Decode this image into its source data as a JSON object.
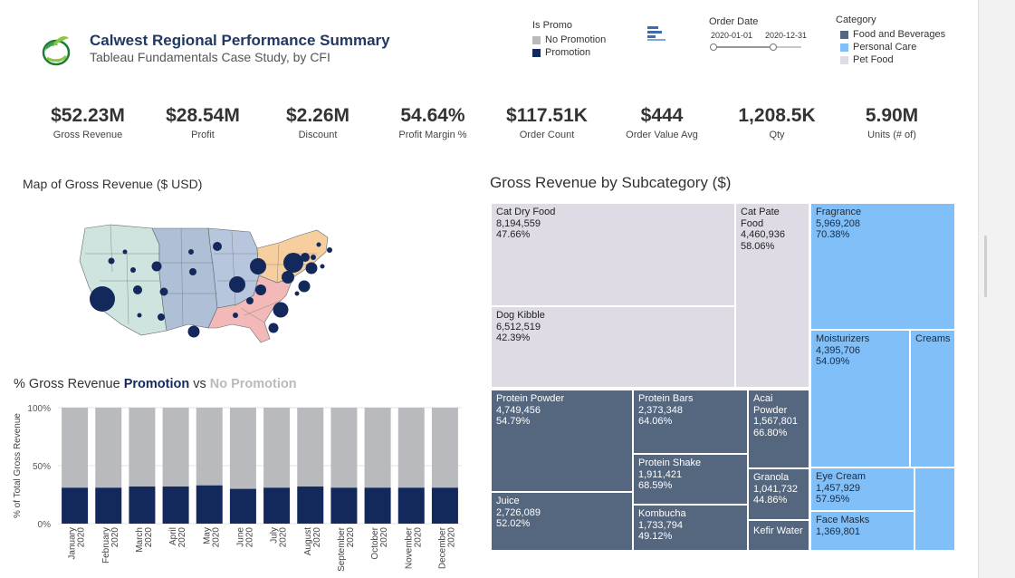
{
  "header": {
    "title": "Calwest Regional Performance Summary",
    "subtitle": "Tableau Fundamentals Case Study, by CFI"
  },
  "promo_legend": {
    "title": "Is Promo",
    "items": [
      {
        "label": "No Promotion",
        "color": "#b9babd"
      },
      {
        "label": "Promotion",
        "color": "#13295b"
      }
    ]
  },
  "order_date": {
    "title": "Order Date",
    "start": "2020-01-01",
    "end": "2020-12-31",
    "range_fraction": [
      0,
      0.68
    ]
  },
  "category_legend": {
    "title": "Category",
    "items": [
      {
        "label": "Food and Beverages",
        "color": "#55667f"
      },
      {
        "label": "Personal Care",
        "color": "#80bff8"
      },
      {
        "label": "Pet Food",
        "color": "#dedbe5"
      }
    ]
  },
  "kpis": [
    {
      "value": "$52.23M",
      "label": "Gross Revenue"
    },
    {
      "value": "$28.54M",
      "label": "Profit"
    },
    {
      "value": "$2.26M",
      "label": "Discount"
    },
    {
      "value": "54.64%",
      "label": "Profit Margin %"
    },
    {
      "value": "$117.51K",
      "label": "Order Count"
    },
    {
      "value": "$444",
      "label": "Order Value Avg"
    },
    {
      "value": "1,208.5K",
      "label": "Qty"
    },
    {
      "value": "5.90M",
      "label": "Units (# of)"
    }
  ],
  "map": {
    "title": "Map of Gross Revenue ($ USD)"
  },
  "treemap": {
    "title": "Gross Revenue by Subcategory ($)",
    "cells": [
      {
        "name": "Cat Dry Food",
        "value": "8,194,559",
        "pct": "47.66%",
        "category": "pet"
      },
      {
        "name": "Cat Pate Food",
        "value": "4,460,936",
        "pct": "58.06%",
        "category": "pet"
      },
      {
        "name": "Dog Kibble",
        "value": "6,512,519",
        "pct": "42.39%",
        "category": "pet"
      },
      {
        "name": "Fragrance",
        "value": "5,969,208",
        "pct": "70.38%",
        "category": "care"
      },
      {
        "name": "Moisturizers",
        "value": "4,395,706",
        "pct": "54.09%",
        "category": "care"
      },
      {
        "name": "Creams",
        "value": "",
        "pct": "",
        "category": "care"
      },
      {
        "name": "Eye Cream",
        "value": "1,457,929",
        "pct": "57.95%",
        "category": "care"
      },
      {
        "name": "Face Masks",
        "value": "1,369,801",
        "pct": "",
        "category": "care"
      },
      {
        "name": "",
        "value": "",
        "pct": "",
        "category": "care"
      },
      {
        "name": "Protein Powder",
        "value": "4,749,456",
        "pct": "54.79%",
        "category": "food"
      },
      {
        "name": "Protein Bars",
        "value": "2,373,348",
        "pct": "64.06%",
        "category": "food"
      },
      {
        "name": "Acai Powder",
        "value": "1,567,801",
        "pct": "66.80%",
        "category": "food"
      },
      {
        "name": "Protein Shake",
        "value": "1,911,421",
        "pct": "68.59%",
        "category": "food"
      },
      {
        "name": "Granola",
        "value": "1,041,732",
        "pct": "44.86%",
        "category": "food"
      },
      {
        "name": "Juice",
        "value": "2,726,089",
        "pct": "52.02%",
        "category": "food"
      },
      {
        "name": "Kombucha",
        "value": "1,733,794",
        "pct": "49.12%",
        "category": "food"
      },
      {
        "name": "Kefir Water",
        "value": "",
        "pct": "",
        "category": "food"
      }
    ]
  },
  "promo_chart": {
    "title_prefix": "% Gross Revenue ",
    "title_promo": "Promotion",
    "title_mid": " vs ",
    "title_nopromo": "No Promotion"
  },
  "chart_data": {
    "type": "bar",
    "stacked": true,
    "categories": [
      "January 2020",
      "February 2020",
      "March 2020",
      "April 2020",
      "May 2020",
      "June 2020",
      "July 2020",
      "August 2020",
      "September 2020",
      "October 2020",
      "November 2020",
      "December 2020"
    ],
    "series": [
      {
        "name": "Promotion",
        "color": "#13295b",
        "values": [
          31,
          31,
          32,
          32,
          33,
          30,
          31,
          32,
          31,
          31,
          31,
          31
        ]
      },
      {
        "name": "No Promotion",
        "color": "#b9babd",
        "values": [
          69,
          69,
          68,
          68,
          67,
          70,
          69,
          68,
          69,
          69,
          69,
          69
        ]
      }
    ],
    "ylabel": "% of Total Gross Revenue",
    "yticks": [
      "0%",
      "50%",
      "100%"
    ],
    "ylim": [
      0,
      100
    ],
    "grid": true
  }
}
